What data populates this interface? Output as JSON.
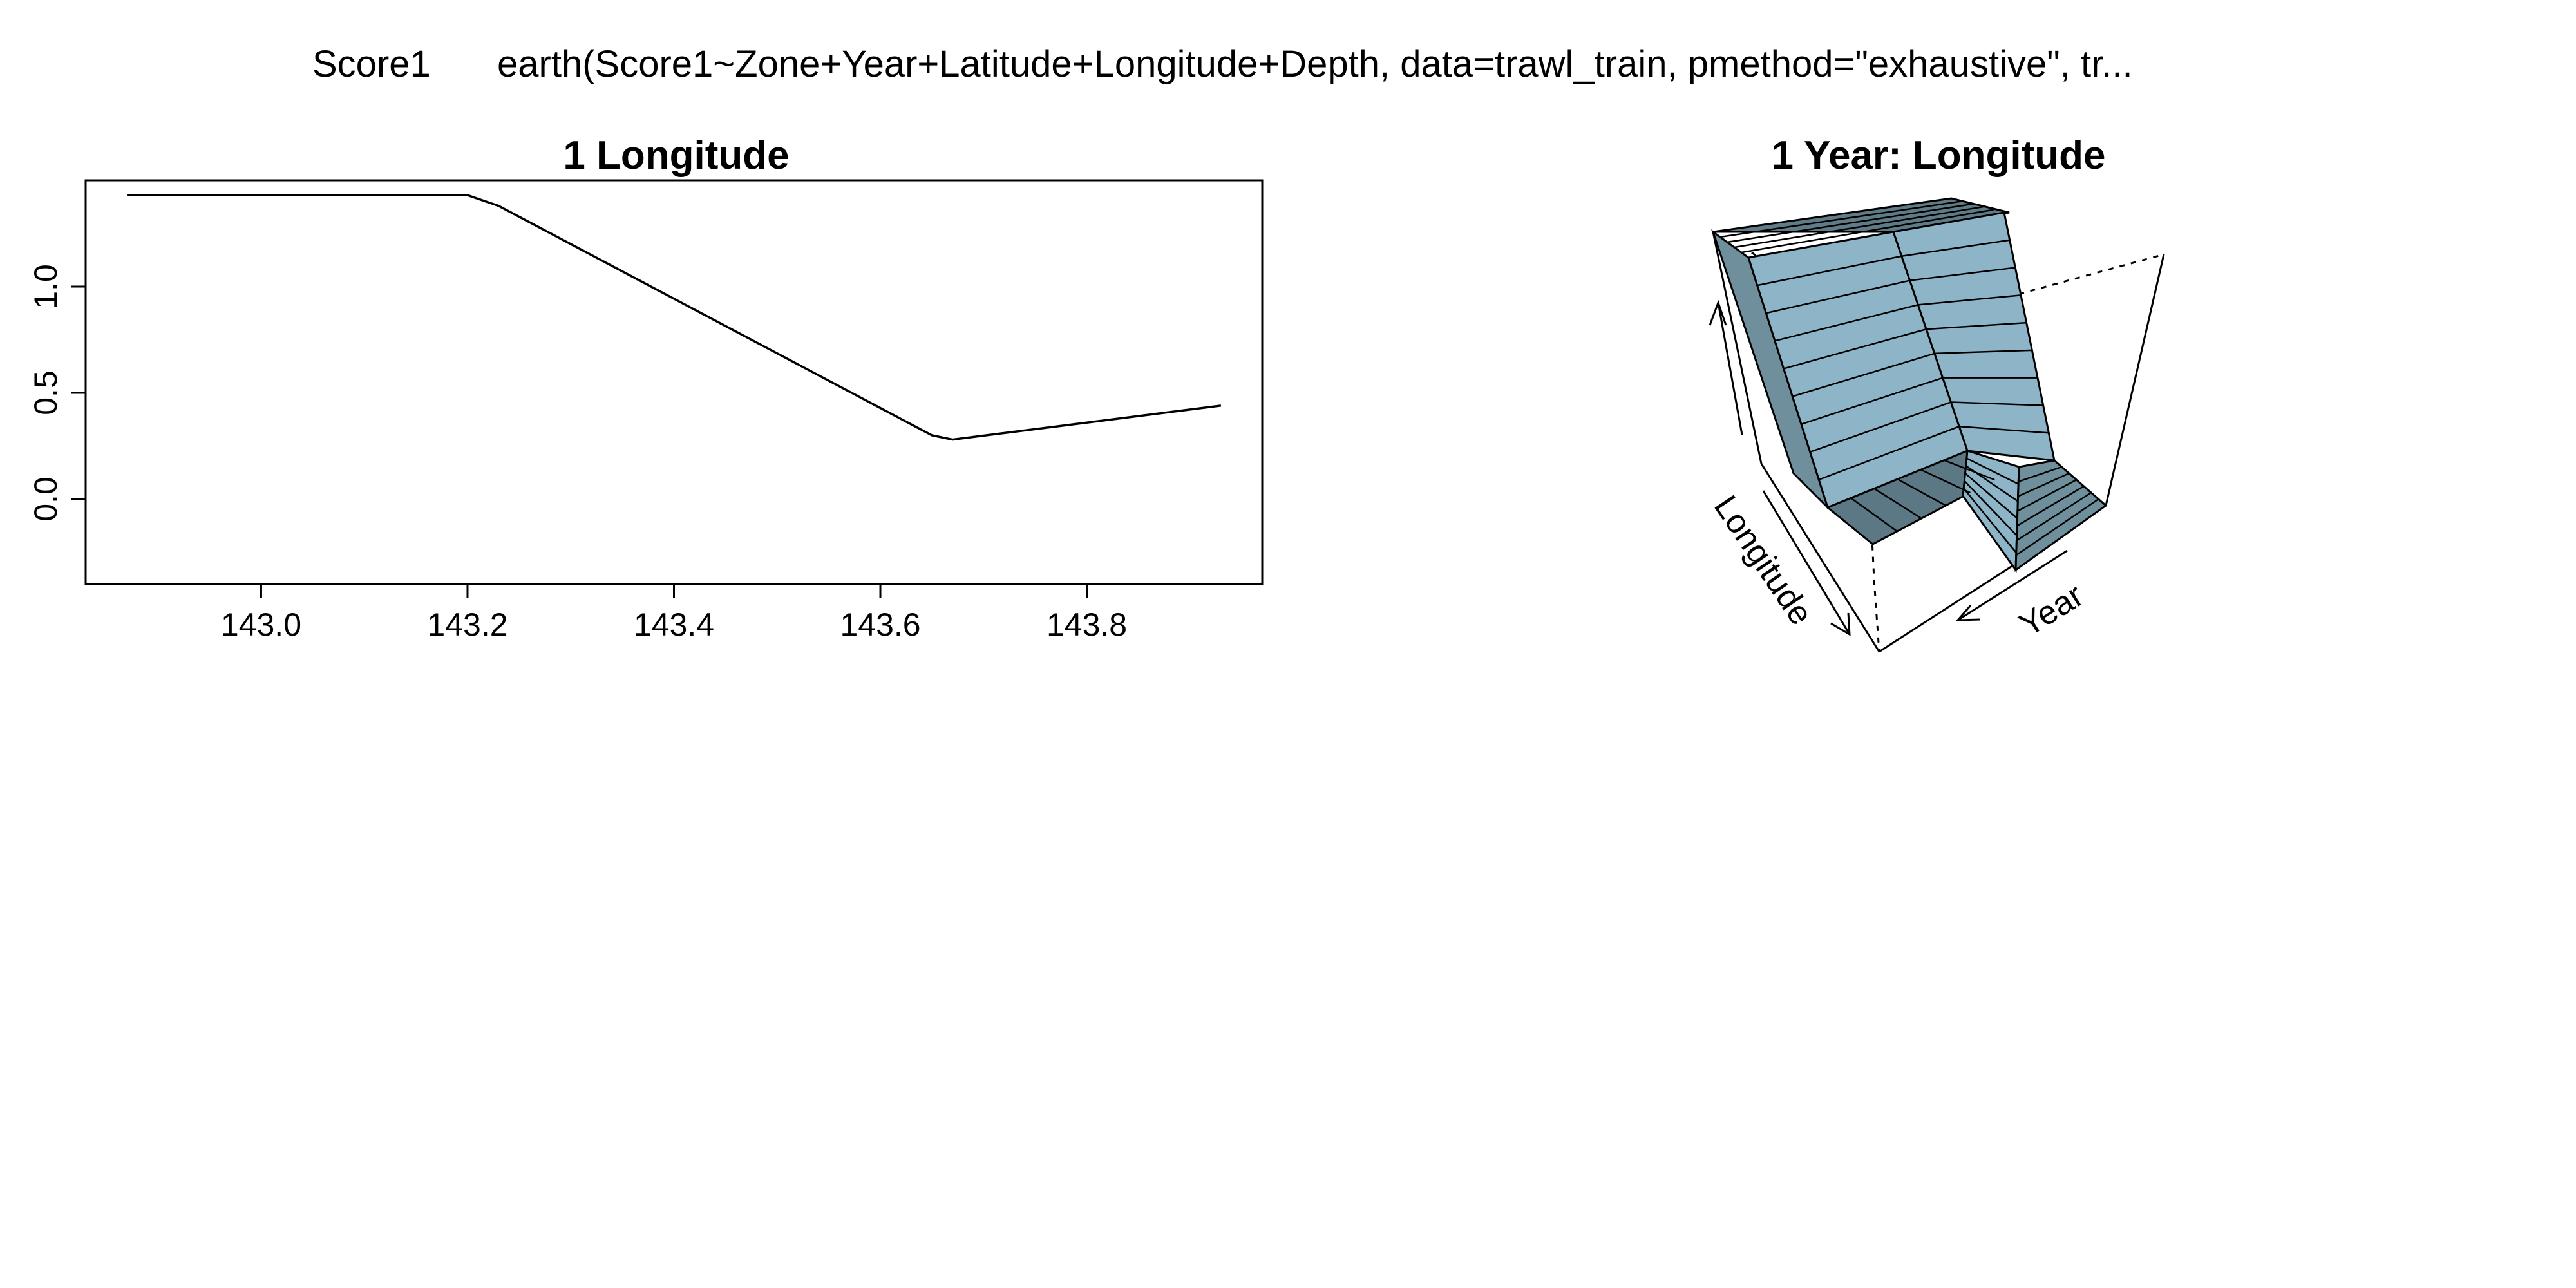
{
  "header": {
    "response": "Score1",
    "call": "earth(Score1~Zone+Year+Latitude+Longitude+Depth, data=trawl_train, pmethod=\"exhaustive\", tr..."
  },
  "chart_data": [
    {
      "type": "line",
      "title": "1  Longitude",
      "xlabel": "",
      "ylabel": "",
      "xlim": [
        142.83,
        143.97
      ],
      "ylim": [
        -0.4,
        1.5
      ],
      "xticks": [
        "143.0",
        "143.2",
        "143.4",
        "143.6",
        "143.8"
      ],
      "yticks": [
        "0.0",
        "0.5",
        "1.0"
      ],
      "grid": false,
      "x": [
        142.87,
        143.2,
        143.23,
        143.65,
        143.67,
        143.93
      ],
      "y": [
        1.43,
        1.43,
        1.38,
        0.3,
        0.28,
        0.44
      ]
    },
    {
      "type": "surface",
      "title": "1 Year: Longitude",
      "axes": [
        "Longitude",
        "Year"
      ],
      "surface_color": "#8db5c7"
    }
  ]
}
